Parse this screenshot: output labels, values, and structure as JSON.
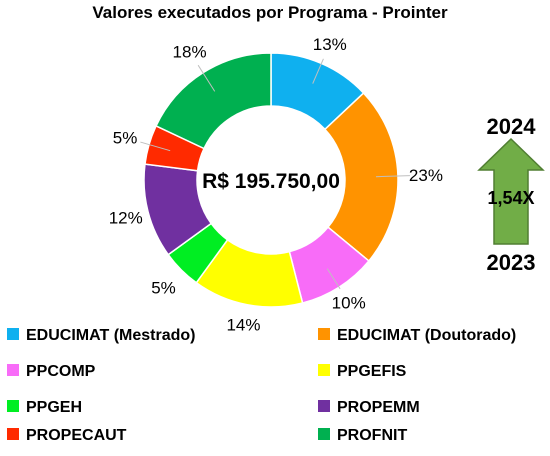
{
  "chart_data": {
    "type": "pie",
    "donut": true,
    "title": "Valores executados por Programa - Prointer",
    "center_label": "R$ 195.750,00",
    "categories": [
      "EDUCIMAT (Mestrado)",
      "EDUCIMAT (Doutorado)",
      "PPCOMP",
      "PPGEFIS",
      "PPGEH",
      "PROPEMM",
      "PROPECAUT",
      "PROFNIT"
    ],
    "values": [
      13,
      23,
      10,
      14,
      5,
      12,
      5,
      18
    ],
    "value_labels": [
      "13%",
      "23%",
      "10%",
      "14%",
      "5%",
      "12%",
      "5%",
      "18%"
    ],
    "colors": [
      "#0fb0ef",
      "#ff9300",
      "#f86cf8",
      "#ffff00",
      "#00ee22",
      "#7030a0",
      "#ff2a00",
      "#00b050"
    ],
    "legend_placement": "bottom"
  },
  "growth_arrow": {
    "top_label": "2024",
    "factor_label": "1,54X",
    "bottom_label": "2023",
    "color": "#71ad47"
  }
}
